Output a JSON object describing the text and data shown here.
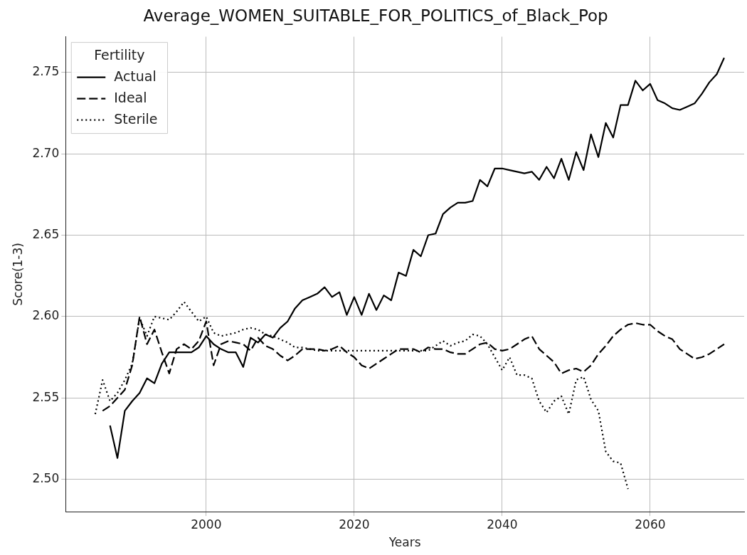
{
  "chart_data": {
    "type": "line",
    "title": "Average_WOMEN_SUITABLE_FOR_POLITICS_of_Black_Pop",
    "xlabel": "Years",
    "ylabel": "Score(1-3)",
    "legend_title": "Fertility",
    "legend": "top left",
    "grid": true,
    "xlim": [
      1981,
      2072.7
    ],
    "xticks": [
      2000,
      2020,
      2040,
      2060
    ],
    "ylim": [
      2.48,
      2.772
    ],
    "yticks": [
      {
        "value": 2.5,
        "label": "2.50"
      },
      {
        "value": 2.55,
        "label": "2.55"
      },
      {
        "value": 2.6,
        "label": "2.60"
      },
      {
        "value": 2.65,
        "label": "2.65"
      },
      {
        "value": 2.7,
        "label": "2.70"
      },
      {
        "value": 2.75,
        "label": "2.75"
      }
    ],
    "series": [
      {
        "name": "Actual",
        "color": "#000000",
        "line_style": "solid",
        "x": [
          1987,
          1988,
          1989,
          1990,
          1991,
          1992,
          1993,
          1994,
          1995,
          1996,
          1997,
          1998,
          1999,
          2000,
          2001,
          2002,
          2003,
          2004,
          2005,
          2006,
          2007,
          2008,
          2009,
          2010,
          2011,
          2012,
          2013,
          2014,
          2015,
          2016,
          2017,
          2018,
          2019,
          2020,
          2021,
          2022,
          2023,
          2024,
          2025,
          2026,
          2027,
          2028,
          2029,
          2030,
          2031,
          2032,
          2033,
          2034,
          2035,
          2036,
          2037,
          2038,
          2039,
          2040,
          2041,
          2042,
          2043,
          2044,
          2045,
          2046,
          2047,
          2048,
          2049,
          2050,
          2051,
          2052,
          2053,
          2054,
          2055,
          2056,
          2057,
          2058,
          2059,
          2060,
          2061,
          2062,
          2063,
          2064,
          2065,
          2066,
          2067,
          2068,
          2069,
          2070
        ],
        "values": [
          2.533,
          2.513,
          2.542,
          2.548,
          2.553,
          2.562,
          2.559,
          2.571,
          2.578,
          2.578,
          2.578,
          2.578,
          2.581,
          2.588,
          2.583,
          2.58,
          2.578,
          2.578,
          2.569,
          2.587,
          2.584,
          2.589,
          2.587,
          2.593,
          2.597,
          2.605,
          2.61,
          2.612,
          2.614,
          2.618,
          2.612,
          2.615,
          2.601,
          2.612,
          2.601,
          2.614,
          2.604,
          2.613,
          2.61,
          2.627,
          2.625,
          2.641,
          2.637,
          2.65,
          2.651,
          2.663,
          2.667,
          2.67,
          2.67,
          2.671,
          2.684,
          2.68,
          2.691,
          2.691,
          2.69,
          2.689,
          2.688,
          2.689,
          2.684,
          2.692,
          2.685,
          2.697,
          2.684,
          2.701,
          2.69,
          2.712,
          2.698,
          2.719,
          2.71,
          2.73,
          2.73,
          2.745,
          2.739,
          2.743,
          2.733,
          2.731,
          2.728,
          2.727,
          2.729,
          2.731,
          2.737,
          2.744,
          2.749,
          2.759
        ]
      },
      {
        "name": "Ideal",
        "color": "#000000",
        "line_style": "dashed",
        "x": [
          1986,
          1987,
          1988,
          1989,
          1990,
          1991,
          1992,
          1993,
          1994,
          1995,
          1996,
          1997,
          1998,
          1999,
          2000,
          2001,
          2002,
          2003,
          2004,
          2005,
          2006,
          2007,
          2008,
          2009,
          2010,
          2011,
          2012,
          2013,
          2014,
          2015,
          2016,
          2017,
          2018,
          2019,
          2020,
          2021,
          2022,
          2023,
          2024,
          2025,
          2026,
          2027,
          2028,
          2029,
          2030,
          2031,
          2032,
          2033,
          2034,
          2035,
          2036,
          2037,
          2038,
          2039,
          2040,
          2041,
          2042,
          2043,
          2044,
          2045,
          2046,
          2047,
          2048,
          2049,
          2050,
          2051,
          2052,
          2053,
          2054,
          2055,
          2056,
          2057,
          2058,
          2059,
          2060,
          2061,
          2062,
          2063,
          2064,
          2065,
          2066,
          2067,
          2068,
          2069,
          2070
        ],
        "values": [
          2.542,
          2.545,
          2.55,
          2.555,
          2.57,
          2.6,
          2.583,
          2.592,
          2.578,
          2.565,
          2.58,
          2.583,
          2.58,
          2.585,
          2.597,
          2.57,
          2.583,
          2.585,
          2.584,
          2.583,
          2.579,
          2.587,
          2.582,
          2.58,
          2.576,
          2.573,
          2.576,
          2.58,
          2.58,
          2.58,
          2.579,
          2.58,
          2.582,
          2.578,
          2.575,
          2.57,
          2.568,
          2.571,
          2.574,
          2.577,
          2.58,
          2.58,
          2.58,
          2.578,
          2.581,
          2.58,
          2.58,
          2.578,
          2.577,
          2.577,
          2.58,
          2.583,
          2.584,
          2.58,
          2.579,
          2.58,
          2.583,
          2.586,
          2.588,
          2.58,
          2.576,
          2.572,
          2.565,
          2.567,
          2.568,
          2.566,
          2.57,
          2.577,
          2.582,
          2.588,
          2.592,
          2.595,
          2.596,
          2.595,
          2.595,
          2.591,
          2.588,
          2.586,
          2.58,
          2.577,
          2.574,
          2.575,
          2.577,
          2.58,
          2.583
        ]
      },
      {
        "name": "Sterile",
        "color": "#000000",
        "line_style": "dotted",
        "x": [
          1985,
          1986,
          1987,
          1988,
          1989,
          1990,
          1991,
          1992,
          1993,
          1994,
          1995,
          1996,
          1997,
          1998,
          1999,
          2000,
          2001,
          2002,
          2003,
          2004,
          2005,
          2006,
          2007,
          2008,
          2009,
          2010,
          2011,
          2012,
          2013,
          2014,
          2015,
          2016,
          2017,
          2018,
          2019,
          2020,
          2021,
          2022,
          2023,
          2024,
          2025,
          2026,
          2027,
          2028,
          2029,
          2030,
          2031,
          2032,
          2033,
          2034,
          2035,
          2036,
          2037,
          2038,
          2039,
          2040,
          2041,
          2042,
          2043,
          2044,
          2045,
          2046,
          2047,
          2048,
          2049,
          2050,
          2051,
          2052,
          2053,
          2054,
          2055,
          2056,
          2057
        ],
        "values": [
          2.54,
          2.561,
          2.548,
          2.553,
          2.561,
          2.571,
          2.599,
          2.588,
          2.6,
          2.599,
          2.598,
          2.603,
          2.609,
          2.603,
          2.597,
          2.6,
          2.59,
          2.588,
          2.589,
          2.59,
          2.592,
          2.593,
          2.592,
          2.589,
          2.588,
          2.586,
          2.584,
          2.581,
          2.581,
          2.58,
          2.579,
          2.579,
          2.579,
          2.579,
          2.579,
          2.579,
          2.579,
          2.579,
          2.579,
          2.579,
          2.579,
          2.579,
          2.579,
          2.579,
          2.579,
          2.579,
          2.582,
          2.585,
          2.582,
          2.584,
          2.585,
          2.589,
          2.588,
          2.583,
          2.575,
          2.567,
          2.575,
          2.564,
          2.564,
          2.562,
          2.548,
          2.541,
          2.548,
          2.551,
          2.54,
          2.561,
          2.563,
          2.549,
          2.542,
          2.517,
          2.511,
          2.51,
          2.494
        ]
      }
    ]
  }
}
